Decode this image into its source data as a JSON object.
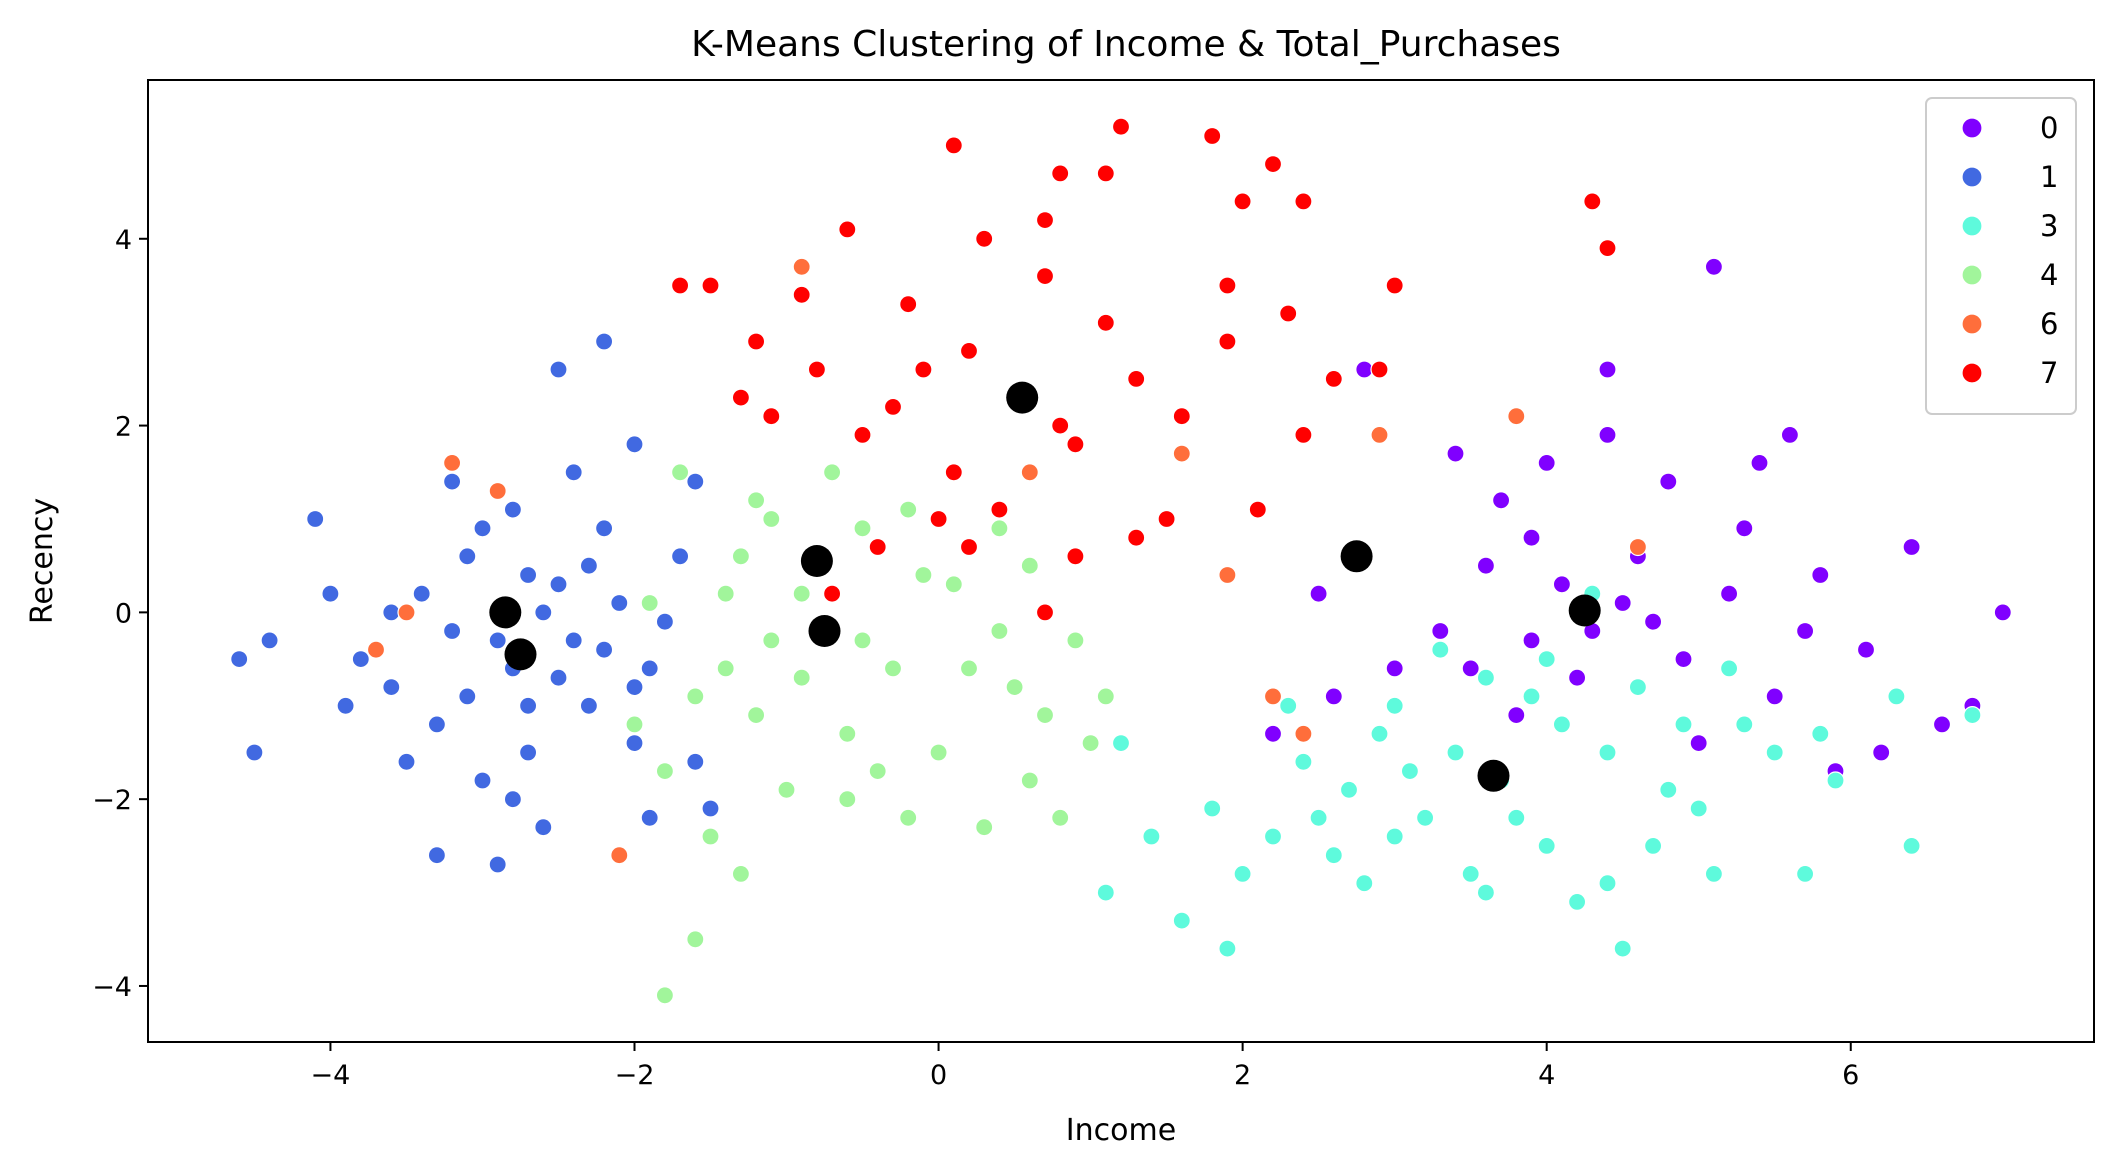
{
  "chart_data": {
    "type": "scatter",
    "title": "K-Means Clustering of Income & Total_Purchases",
    "xlabel": "Income",
    "ylabel": "Recency",
    "xlim": [
      -5.2,
      7.6
    ],
    "ylim": [
      -4.6,
      5.7
    ],
    "xticks": [
      -4,
      -2,
      0,
      2,
      4,
      6
    ],
    "yticks": [
      -4,
      -2,
      0,
      2,
      4
    ],
    "xtick_labels": [
      "−4",
      "−2",
      "0",
      "2",
      "4",
      "6"
    ],
    "ytick_labels": [
      "−4",
      "−2",
      "0",
      "2",
      "4"
    ],
    "grid": false,
    "legend_placement": "top-right",
    "series": [
      {
        "name": "0",
        "color": "#8000ff",
        "points": [
          [
            3.7,
            1.2
          ],
          [
            3.9,
            0.8
          ],
          [
            4.1,
            0.3
          ],
          [
            4.3,
            -0.2
          ],
          [
            4.6,
            0.6
          ],
          [
            4.9,
            -0.5
          ],
          [
            5.2,
            0.2
          ],
          [
            5.5,
            -0.9
          ],
          [
            5.8,
            0.4
          ],
          [
            6.1,
            -0.4
          ],
          [
            6.4,
            0.7
          ],
          [
            6.8,
            -1.0
          ],
          [
            7.0,
            0.0
          ],
          [
            3.5,
            -0.6
          ],
          [
            3.8,
            -1.1
          ],
          [
            4.0,
            1.6
          ],
          [
            4.4,
            1.9
          ],
          [
            4.8,
            1.4
          ],
          [
            5.1,
            3.7
          ],
          [
            4.4,
            2.6
          ],
          [
            5.4,
            1.6
          ],
          [
            5.6,
            1.9
          ],
          [
            5.9,
            -1.7
          ],
          [
            6.6,
            -1.2
          ],
          [
            5.0,
            -1.4
          ],
          [
            4.2,
            -0.7
          ],
          [
            3.6,
            0.5
          ],
          [
            3.3,
            -0.2
          ],
          [
            2.8,
            2.6
          ],
          [
            3.0,
            -0.6
          ],
          [
            2.5,
            0.2
          ],
          [
            2.6,
            -0.9
          ],
          [
            2.2,
            -1.3
          ],
          [
            4.7,
            -0.1
          ],
          [
            5.3,
            0.9
          ],
          [
            3.9,
            -0.3
          ],
          [
            4.5,
            0.1
          ],
          [
            5.7,
            -0.2
          ],
          [
            6.2,
            -1.5
          ],
          [
            3.4,
            1.7
          ]
        ]
      },
      {
        "name": "1",
        "color": "#4169e1",
        "points": [
          [
            -2.9,
            -0.3
          ],
          [
            -2.7,
            0.4
          ],
          [
            -3.1,
            0.6
          ],
          [
            -2.5,
            -0.7
          ],
          [
            -3.3,
            -1.2
          ],
          [
            -2.2,
            0.9
          ],
          [
            -3.6,
            -0.8
          ],
          [
            -2.0,
            -1.4
          ],
          [
            -2.4,
            1.5
          ],
          [
            -3.0,
            -1.8
          ],
          [
            -2.6,
            -2.3
          ],
          [
            -3.4,
            0.2
          ],
          [
            -2.1,
            0.1
          ],
          [
            -1.9,
            -0.6
          ],
          [
            -2.8,
            1.1
          ],
          [
            -3.2,
            -0.2
          ],
          [
            -2.3,
            -1.0
          ],
          [
            -2.7,
            -1.5
          ],
          [
            -3.5,
            -1.6
          ],
          [
            -2.0,
            1.8
          ],
          [
            -1.7,
            0.6
          ],
          [
            -2.5,
            2.6
          ],
          [
            -2.2,
            2.9
          ],
          [
            -4.1,
            1.0
          ],
          [
            -4.6,
            -0.5
          ],
          [
            -4.5,
            -1.5
          ],
          [
            -4.4,
            -0.3
          ],
          [
            -3.8,
            -0.5
          ],
          [
            -3.9,
            -1.0
          ],
          [
            -2.9,
            -2.7
          ],
          [
            -3.3,
            -2.6
          ],
          [
            -1.6,
            -1.6
          ],
          [
            -1.5,
            -2.1
          ],
          [
            -1.9,
            -2.2
          ],
          [
            -2.6,
            0.0
          ],
          [
            -2.4,
            -0.3
          ],
          [
            -3.0,
            0.9
          ],
          [
            -3.1,
            -0.9
          ],
          [
            -2.8,
            -0.6
          ],
          [
            -2.2,
            -0.4
          ],
          [
            -1.8,
            -0.1
          ],
          [
            -2.3,
            0.5
          ],
          [
            -2.7,
            -1.0
          ],
          [
            -3.6,
            0.0
          ],
          [
            -2.0,
            -0.8
          ],
          [
            -2.5,
            0.3
          ],
          [
            -1.6,
            1.4
          ],
          [
            -4.0,
            0.2
          ],
          [
            -3.2,
            1.4
          ],
          [
            -2.8,
            -2.0
          ]
        ]
      },
      {
        "name": "3",
        "color": "#5efadc",
        "points": [
          [
            3.7,
            -1.8
          ],
          [
            3.2,
            -2.2
          ],
          [
            4.0,
            -2.5
          ],
          [
            4.4,
            -1.5
          ],
          [
            2.9,
            -1.3
          ],
          [
            3.5,
            -2.8
          ],
          [
            4.2,
            -3.1
          ],
          [
            2.6,
            -2.6
          ],
          [
            4.8,
            -1.9
          ],
          [
            3.0,
            -1.0
          ],
          [
            2.2,
            -2.4
          ],
          [
            1.8,
            -2.1
          ],
          [
            1.6,
            -3.3
          ],
          [
            1.9,
            -3.6
          ],
          [
            4.5,
            -3.6
          ],
          [
            5.5,
            -1.5
          ],
          [
            5.9,
            -1.8
          ],
          [
            6.3,
            -0.9
          ],
          [
            6.4,
            -2.5
          ],
          [
            6.8,
            -1.1
          ],
          [
            5.7,
            -2.8
          ],
          [
            5.1,
            -2.8
          ],
          [
            3.9,
            -0.9
          ],
          [
            4.6,
            -0.8
          ],
          [
            2.4,
            -1.6
          ],
          [
            1.2,
            -1.4
          ],
          [
            1.1,
            -3.0
          ],
          [
            1.4,
            -2.4
          ],
          [
            3.3,
            -0.4
          ],
          [
            4.3,
            0.2
          ],
          [
            4.9,
            -1.2
          ],
          [
            5.2,
            -0.6
          ],
          [
            3.6,
            -3.0
          ],
          [
            2.8,
            -2.9
          ],
          [
            3.1,
            -1.7
          ],
          [
            4.1,
            -1.2
          ],
          [
            3.4,
            -1.5
          ],
          [
            2.0,
            -2.8
          ],
          [
            2.7,
            -1.9
          ],
          [
            4.7,
            -2.5
          ],
          [
            5.0,
            -2.1
          ],
          [
            3.8,
            -2.2
          ],
          [
            4.4,
            -2.9
          ],
          [
            3.0,
            -2.4
          ],
          [
            2.5,
            -2.2
          ],
          [
            5.3,
            -1.2
          ],
          [
            5.8,
            -1.3
          ],
          [
            4.0,
            -0.5
          ],
          [
            3.6,
            -0.7
          ],
          [
            2.3,
            -1.0
          ]
        ]
      },
      {
        "name": "4",
        "color": "#a1f59b",
        "points": [
          [
            -0.8,
            0.6
          ],
          [
            -1.1,
            -0.3
          ],
          [
            -0.5,
            0.9
          ],
          [
            -1.4,
            0.2
          ],
          [
            -0.3,
            -0.6
          ],
          [
            -1.6,
            -0.9
          ],
          [
            -0.6,
            -1.3
          ],
          [
            -1.2,
            1.2
          ],
          [
            0.1,
            0.3
          ],
          [
            -0.9,
            -0.7
          ],
          [
            0.4,
            -0.2
          ],
          [
            -1.8,
            -1.7
          ],
          [
            -1.5,
            -2.4
          ],
          [
            -1.3,
            -2.8
          ],
          [
            -1.6,
            -3.5
          ],
          [
            -1.8,
            -4.1
          ],
          [
            0.0,
            -1.5
          ],
          [
            0.3,
            -2.3
          ],
          [
            0.6,
            -1.8
          ],
          [
            0.8,
            -2.2
          ],
          [
            0.5,
            -0.8
          ],
          [
            0.9,
            -0.3
          ],
          [
            1.0,
            -1.4
          ],
          [
            -0.2,
            -2.2
          ],
          [
            -0.4,
            -1.7
          ],
          [
            -1.0,
            -1.9
          ],
          [
            -2.0,
            -1.2
          ],
          [
            -1.9,
            0.1
          ],
          [
            -1.7,
            1.5
          ],
          [
            -0.7,
            1.5
          ],
          [
            -0.2,
            1.1
          ],
          [
            0.2,
            0.7
          ],
          [
            0.6,
            0.5
          ],
          [
            1.1,
            -0.9
          ],
          [
            0.2,
            -0.6
          ],
          [
            -0.5,
            -0.3
          ],
          [
            -1.2,
            -1.1
          ],
          [
            -1.4,
            -0.6
          ],
          [
            -0.9,
            0.2
          ],
          [
            -0.1,
            0.4
          ],
          [
            0.7,
            -1.1
          ],
          [
            -1.3,
            0.6
          ],
          [
            -0.6,
            -2.0
          ],
          [
            -1.1,
            1.0
          ],
          [
            0.4,
            0.9
          ]
        ]
      },
      {
        "name": "6",
        "color": "#ff6e3b",
        "points": [
          [
            -3.7,
            -0.4
          ],
          [
            -3.5,
            0.0
          ],
          [
            -3.2,
            1.6
          ],
          [
            -2.9,
            1.3
          ],
          [
            -0.9,
            3.7
          ],
          [
            1.6,
            1.7
          ],
          [
            2.2,
            -0.9
          ],
          [
            2.4,
            -1.3
          ],
          [
            3.8,
            2.1
          ],
          [
            4.6,
            0.7
          ],
          [
            2.9,
            1.9
          ],
          [
            -2.1,
            -2.6
          ],
          [
            0.6,
            1.5
          ],
          [
            1.9,
            0.4
          ]
        ]
      },
      {
        "name": "7",
        "color": "#ff0000",
        "points": [
          [
            0.5,
            2.3
          ],
          [
            0.2,
            2.8
          ],
          [
            0.9,
            1.8
          ],
          [
            -0.2,
            3.3
          ],
          [
            1.3,
            2.5
          ],
          [
            -0.5,
            1.9
          ],
          [
            0.7,
            3.6
          ],
          [
            1.6,
            2.1
          ],
          [
            -0.8,
            2.6
          ],
          [
            0.1,
            1.5
          ],
          [
            1.1,
            3.1
          ],
          [
            -0.3,
            2.2
          ],
          [
            0.4,
            1.1
          ],
          [
            1.9,
            2.9
          ],
          [
            -0.9,
            3.4
          ],
          [
            -0.6,
            4.1
          ],
          [
            0.3,
            4.0
          ],
          [
            0.7,
            4.2
          ],
          [
            0.8,
            4.7
          ],
          [
            1.1,
            4.7
          ],
          [
            1.2,
            5.2
          ],
          [
            1.8,
            5.1
          ],
          [
            2.0,
            4.4
          ],
          [
            2.2,
            4.8
          ],
          [
            2.4,
            4.4
          ],
          [
            1.9,
            3.5
          ],
          [
            2.3,
            3.2
          ],
          [
            2.6,
            2.5
          ],
          [
            2.9,
            2.6
          ],
          [
            3.0,
            3.5
          ],
          [
            4.3,
            4.4
          ],
          [
            4.4,
            3.9
          ],
          [
            0.1,
            5.0
          ],
          [
            -1.7,
            3.5
          ],
          [
            -1.5,
            3.5
          ],
          [
            -1.2,
            2.9
          ],
          [
            -1.3,
            2.3
          ],
          [
            -1.1,
            2.1
          ],
          [
            -0.4,
            0.7
          ],
          [
            0.0,
            1.0
          ],
          [
            0.2,
            0.7
          ],
          [
            0.9,
            0.6
          ],
          [
            1.3,
            0.8
          ],
          [
            0.7,
            0.0
          ],
          [
            -0.7,
            0.2
          ],
          [
            2.1,
            1.1
          ],
          [
            2.4,
            1.9
          ],
          [
            1.5,
            1.0
          ],
          [
            -0.1,
            2.6
          ],
          [
            0.8,
            2.0
          ]
        ]
      }
    ],
    "centroids": [
      [
        -2.85,
        0.0
      ],
      [
        -2.75,
        -0.45
      ],
      [
        -0.8,
        0.55
      ],
      [
        -0.75,
        -0.2
      ],
      [
        0.55,
        2.3
      ],
      [
        2.75,
        0.6
      ],
      [
        4.25,
        0.02
      ],
      [
        3.65,
        -1.75
      ]
    ],
    "centroid_color": "#000000"
  }
}
